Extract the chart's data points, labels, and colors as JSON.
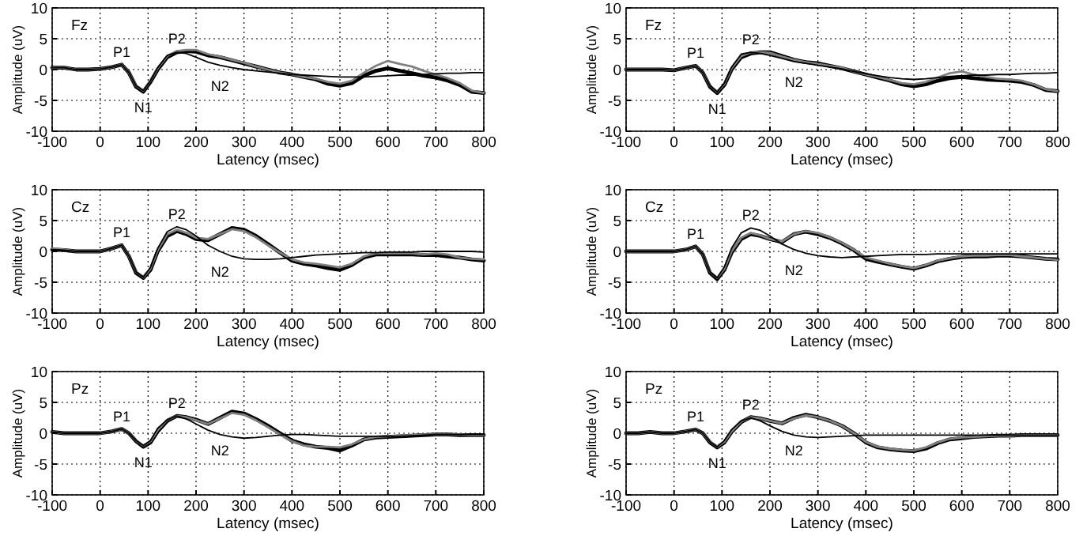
{
  "chart_data": [
    {
      "type": "line",
      "title": "Fz",
      "xlabel": "Latency (msec)",
      "ylabel": "Amplitude (uV)",
      "xlim": [
        -100,
        800
      ],
      "xticks": [
        -100,
        0,
        100,
        200,
        300,
        400,
        500,
        600,
        700,
        800
      ],
      "ylim": [
        -10,
        10
      ],
      "yticks": [
        -10,
        -5,
        0,
        5,
        10
      ],
      "grid": true,
      "x": [
        -100,
        -75,
        -50,
        -25,
        0,
        25,
        45,
        60,
        75,
        90,
        105,
        120,
        140,
        160,
        180,
        200,
        225,
        250,
        275,
        300,
        325,
        350,
        375,
        400,
        425,
        450,
        475,
        500,
        525,
        550,
        575,
        600,
        625,
        650,
        675,
        700,
        725,
        750,
        775,
        800
      ],
      "annotations": [
        {
          "text": "P1",
          "x": 45,
          "y": 0.8
        },
        {
          "text": "N1",
          "x": 90,
          "y": -3.6
        },
        {
          "text": "P2",
          "x": 160,
          "y": 3
        },
        {
          "text": "N2",
          "x": 250,
          "y": 0.7
        }
      ],
      "series": [
        {
          "color": "#000000",
          "values": [
            0.3,
            0.3,
            0,
            0,
            0.1,
            0.4,
            0.8,
            -0.5,
            -2.8,
            -3.6,
            -2,
            0,
            2,
            2.8,
            3,
            2.9,
            2.3,
            2,
            1.5,
            1.0,
            0.5,
            0,
            -0.5,
            -0.8,
            -1.2,
            -1.6,
            -2.3,
            -2.6,
            -2.2,
            -1,
            -0.2,
            0.2,
            -0.2,
            -0.6,
            -1,
            -1.3,
            -1.8,
            -2.5,
            -3.6,
            -3.8
          ]
        },
        {
          "color": "#808080",
          "values": [
            0.3,
            0.3,
            0,
            0,
            0.1,
            0.4,
            0.8,
            -0.5,
            -2.6,
            -3.4,
            -1.8,
            0.2,
            2.2,
            3,
            3.2,
            3.2,
            2.5,
            2.1,
            1.6,
            1.1,
            0.5,
            0,
            -0.5,
            -0.8,
            -1.2,
            -1.5,
            -2,
            -2.3,
            -1.8,
            -0.5,
            0.6,
            1.4,
            0.9,
            0.5,
            -0.2,
            -0.8,
            -1.4,
            -2.2,
            -3.4,
            -3.8
          ]
        },
        {
          "color": "#000000",
          "values": [
            0.3,
            0.3,
            0,
            0,
            0.1,
            0.4,
            0.8,
            -0.5,
            -2.6,
            -3.4,
            -1.8,
            0.3,
            2.3,
            2.8,
            2.6,
            2,
            1.2,
            0.7,
            0.3,
            0,
            -0.2,
            -0.4,
            -0.6,
            -0.8,
            -0.9,
            -1,
            -1.1,
            -1.2,
            -1.2,
            -1.2,
            -1.1,
            -1,
            -0.9,
            -0.9,
            -0.8,
            -0.7,
            -0.6,
            -0.6,
            -0.5,
            -0.5
          ]
        }
      ]
    },
    {
      "type": "line",
      "title": "Fz",
      "xlabel": "Latency (msec)",
      "ylabel": "Amplitude (uV)",
      "xlim": [
        -100,
        800
      ],
      "xticks": [
        -100,
        0,
        100,
        200,
        300,
        400,
        500,
        600,
        700,
        800
      ],
      "ylim": [
        -10,
        10
      ],
      "yticks": [
        -10,
        -5,
        0,
        5,
        10
      ],
      "grid": true,
      "x": [
        -100,
        -75,
        -50,
        -25,
        0,
        25,
        45,
        60,
        75,
        90,
        105,
        120,
        140,
        160,
        180,
        200,
        225,
        250,
        275,
        300,
        325,
        350,
        375,
        400,
        425,
        450,
        475,
        500,
        525,
        550,
        575,
        600,
        625,
        650,
        675,
        700,
        725,
        750,
        775,
        800
      ],
      "annotations": [
        {
          "text": "P1",
          "x": 45,
          "y": 0.6
        },
        {
          "text": "N1",
          "x": 90,
          "y": -3.8
        },
        {
          "text": "P2",
          "x": 160,
          "y": 2.8
        },
        {
          "text": "N2",
          "x": 250,
          "y": 1.3
        }
      ],
      "series": [
        {
          "color": "#000000",
          "values": [
            0,
            0,
            0,
            0,
            -0.1,
            0.3,
            0.6,
            -0.5,
            -2.8,
            -3.8,
            -2.5,
            0,
            2,
            2.6,
            2.8,
            2.8,
            2.2,
            1.6,
            1.2,
            1,
            0.6,
            0.2,
            -0.3,
            -0.8,
            -1.3,
            -1.8,
            -2.4,
            -2.7,
            -2.4,
            -1.8,
            -1.4,
            -1.2,
            -1.4,
            -1.6,
            -1.7,
            -1.8,
            -2,
            -2.5,
            -3.3,
            -3.5
          ]
        },
        {
          "color": "#808080",
          "values": [
            0,
            0,
            0,
            0,
            -0.1,
            0.3,
            0.6,
            -0.5,
            -2.6,
            -3.6,
            -2.3,
            0.2,
            2.2,
            2.8,
            2.8,
            2.7,
            2.1,
            1.6,
            1.2,
            0.9,
            0.6,
            0.3,
            -0.3,
            -0.8,
            -1.2,
            -1.7,
            -2.2,
            -2.4,
            -2,
            -1.3,
            -0.6,
            -0.3,
            -0.8,
            -1.2,
            -1.5,
            -1.6,
            -1.8,
            -2.4,
            -3.2,
            -3.5
          ]
        },
        {
          "color": "#000000",
          "values": [
            0,
            0,
            0,
            0,
            -0.1,
            0.3,
            0.6,
            -0.5,
            -2.6,
            -3.6,
            -2.2,
            0.4,
            2.5,
            2.8,
            2.6,
            2.3,
            1.8,
            1.3,
            1,
            0.7,
            0.4,
            0.1,
            -0.3,
            -0.7,
            -1,
            -1.3,
            -1.5,
            -1.6,
            -1.5,
            -1.3,
            -1.1,
            -1,
            -0.9,
            -0.9,
            -0.8,
            -0.8,
            -0.7,
            -0.6,
            -0.6,
            -0.5
          ]
        }
      ]
    },
    {
      "type": "line",
      "title": "Cz",
      "xlabel": "Latency (msec)",
      "ylabel": "Amplitude (uV)",
      "xlim": [
        -100,
        800
      ],
      "xticks": [
        -100,
        0,
        100,
        200,
        300,
        400,
        500,
        600,
        700,
        800
      ],
      "ylim": [
        -10,
        10
      ],
      "yticks": [
        -10,
        -5,
        0,
        5,
        10
      ],
      "grid": true,
      "x": [
        -100,
        -75,
        -50,
        -25,
        0,
        25,
        45,
        60,
        75,
        90,
        105,
        120,
        140,
        160,
        180,
        200,
        225,
        250,
        275,
        300,
        325,
        350,
        375,
        400,
        425,
        450,
        475,
        500,
        525,
        550,
        575,
        600,
        625,
        650,
        675,
        700,
        725,
        750,
        775,
        800
      ],
      "annotations": [
        {
          "text": "P1",
          "x": 45,
          "y": 1
        },
        {
          "text": "P2",
          "x": 160,
          "y": 4
        },
        {
          "text": "N2",
          "x": 250,
          "y": 0
        }
      ],
      "series": [
        {
          "color": "#000000",
          "values": [
            0.3,
            0.2,
            0,
            0,
            0,
            0.5,
            1,
            -0.8,
            -3.5,
            -4.3,
            -3,
            0,
            2.5,
            3.3,
            2.8,
            2,
            1.8,
            2.8,
            3.8,
            3.5,
            2.5,
            1.2,
            -0.2,
            -1.5,
            -2,
            -2.3,
            -2.7,
            -3,
            -2.2,
            -1,
            -0.5,
            -0.5,
            -0.5,
            -0.5,
            -0.6,
            -0.6,
            -0.8,
            -1,
            -1.3,
            -1.5
          ]
        },
        {
          "color": "#808080",
          "values": [
            0.5,
            0.3,
            0,
            0,
            0,
            0.5,
            1,
            -0.8,
            -3.3,
            -4.2,
            -2.8,
            0.2,
            2.8,
            3.5,
            3,
            2.2,
            2,
            2.8,
            3.6,
            3.3,
            2.3,
            1,
            -0.2,
            -1.3,
            -1.8,
            -2,
            -2.3,
            -2.6,
            -2,
            -0.8,
            -0.3,
            -0.3,
            -0.3,
            -0.3,
            -0.5,
            -0.3,
            -0.5,
            -1,
            -1.2,
            -1.3
          ]
        },
        {
          "color": "#000000",
          "values": [
            0.3,
            0.2,
            0,
            0,
            0,
            0.5,
            1,
            -0.8,
            -3.3,
            -4.2,
            -2.6,
            0.5,
            3.2,
            4,
            3.5,
            2.5,
            1,
            0,
            -0.8,
            -1.2,
            -1.3,
            -1.3,
            -1.2,
            -1,
            -0.8,
            -0.6,
            -0.5,
            -0.4,
            -0.3,
            -0.2,
            -0.2,
            -0.1,
            -0.1,
            -0.1,
            0,
            0,
            0,
            0,
            0,
            -0.1
          ]
        }
      ]
    },
    {
      "type": "line",
      "title": "Cz",
      "xlabel": "Latency (msec)",
      "ylabel": "Amplitude (uV)",
      "xlim": [
        -100,
        800
      ],
      "xticks": [
        -100,
        0,
        100,
        200,
        300,
        400,
        500,
        600,
        700,
        800
      ],
      "ylim": [
        -10,
        10
      ],
      "yticks": [
        -10,
        -5,
        0,
        5,
        10
      ],
      "grid": true,
      "x": [
        -100,
        -75,
        -50,
        -25,
        0,
        25,
        45,
        60,
        75,
        90,
        105,
        120,
        140,
        160,
        180,
        200,
        225,
        250,
        275,
        300,
        325,
        350,
        375,
        400,
        425,
        450,
        475,
        500,
        525,
        550,
        575,
        600,
        625,
        650,
        675,
        700,
        725,
        750,
        775,
        800
      ],
      "annotations": [
        {
          "text": "P1",
          "x": 45,
          "y": 0.8
        },
        {
          "text": "P2",
          "x": 160,
          "y": 3.8
        },
        {
          "text": "N2",
          "x": 250,
          "y": 0.3
        }
      ],
      "series": [
        {
          "color": "#000000",
          "values": [
            0,
            0,
            0,
            0,
            0,
            0.3,
            0.8,
            -0.5,
            -3.5,
            -4.5,
            -3,
            -0.2,
            2,
            2.8,
            2.5,
            2,
            1.5,
            2.8,
            3.2,
            2.8,
            2.2,
            1.3,
            0.2,
            -1.2,
            -1.7,
            -2.1,
            -2.5,
            -2.8,
            -2.3,
            -1.6,
            -1.2,
            -0.9,
            -0.8,
            -0.8,
            -0.7,
            -0.7,
            -0.8,
            -1,
            -1.2,
            -1.3
          ]
        },
        {
          "color": "#808080",
          "values": [
            0,
            0,
            0,
            0,
            0,
            0.3,
            0.8,
            -0.5,
            -3.3,
            -4.3,
            -2.8,
            0,
            2.2,
            3,
            2.6,
            2,
            1.6,
            2.8,
            3.3,
            3,
            2.3,
            1.4,
            0.3,
            -1,
            -1.5,
            -2,
            -2.4,
            -2.7,
            -2.2,
            -1.5,
            -1.1,
            -0.8,
            -0.7,
            -0.7,
            -0.6,
            -0.6,
            -0.8,
            -1,
            -1.2,
            -1.4
          ]
        },
        {
          "color": "#000000",
          "values": [
            0,
            0,
            0,
            0,
            0,
            0.3,
            0.8,
            -0.5,
            -3.3,
            -4.3,
            -2.5,
            0.5,
            3,
            3.8,
            3.4,
            2.5,
            1.2,
            0.3,
            -0.3,
            -0.7,
            -0.9,
            -1,
            -0.9,
            -0.8,
            -0.7,
            -0.6,
            -0.5,
            -0.5,
            -0.5,
            -0.4,
            -0.4,
            -0.4,
            -0.4,
            -0.4,
            -0.4,
            -0.4,
            -0.4,
            -0.4,
            -0.4,
            -0.4
          ]
        }
      ]
    },
    {
      "type": "line",
      "title": "Pz",
      "xlabel": "Latency (msec)",
      "ylabel": "Amplitude (uV)",
      "xlim": [
        -100,
        800
      ],
      "xticks": [
        -100,
        0,
        100,
        200,
        300,
        400,
        500,
        600,
        700,
        800
      ],
      "ylim": [
        -10,
        10
      ],
      "yticks": [
        -10,
        -5,
        0,
        5,
        10
      ],
      "grid": true,
      "x": [
        -100,
        -75,
        -50,
        -25,
        0,
        25,
        45,
        60,
        75,
        90,
        105,
        120,
        140,
        160,
        180,
        200,
        225,
        250,
        275,
        300,
        325,
        350,
        375,
        400,
        425,
        450,
        475,
        500,
        525,
        550,
        575,
        600,
        625,
        650,
        675,
        700,
        725,
        750,
        775,
        800
      ],
      "annotations": [
        {
          "text": "P1",
          "x": 45,
          "y": 0.7
        },
        {
          "text": "N1",
          "x": 90,
          "y": -2.2
        },
        {
          "text": "P2",
          "x": 160,
          "y": 2.8
        },
        {
          "text": "N2",
          "x": 250,
          "y": -0.2
        }
      ],
      "series": [
        {
          "color": "#000000",
          "values": [
            0.2,
            0,
            0,
            0,
            0,
            0.3,
            0.7,
            0,
            -1.3,
            -2.2,
            -1.5,
            0.3,
            2,
            2.8,
            2.6,
            2.2,
            1.5,
            2.5,
            3.5,
            3.2,
            2.3,
            1.2,
            0,
            -1.2,
            -1.8,
            -2.2,
            -2.4,
            -2.8,
            -2,
            -1,
            -0.7,
            -0.6,
            -0.5,
            -0.4,
            -0.3,
            -0.2,
            -0.2,
            -0.3,
            -0.3,
            -0.3
          ]
        },
        {
          "color": "#808080",
          "values": [
            0.2,
            0,
            0,
            0,
            0,
            0.3,
            0.7,
            0,
            -1.2,
            -2,
            -1.3,
            0.5,
            2.2,
            2.8,
            2.6,
            2.1,
            1.5,
            2.4,
            3.3,
            3,
            2.1,
            1,
            -0.2,
            -1.3,
            -2,
            -2.2,
            -2.2,
            -2.3,
            -1.8,
            -1,
            -0.6,
            -0.5,
            -0.4,
            -0.3,
            -0.2,
            -0.2,
            -0.2,
            -0.2,
            -0.3,
            -0.3
          ]
        },
        {
          "color": "#000000",
          "values": [
            0.2,
            0,
            0,
            0,
            0,
            0.3,
            0.7,
            0,
            -1.2,
            -2,
            -1.2,
            0.8,
            2.2,
            2.8,
            2.3,
            1.5,
            0.5,
            -0.2,
            -0.6,
            -0.8,
            -0.7,
            -0.5,
            -0.3,
            -0.2,
            -0.2,
            -0.3,
            -0.4,
            -0.5,
            -0.5,
            -0.5,
            -0.5,
            -0.5,
            -0.5,
            -0.4,
            -0.3,
            -0.2,
            -0.2,
            -0.2,
            -0.2,
            -0.2
          ]
        }
      ]
    },
    {
      "type": "line",
      "title": "Pz",
      "xlabel": "Latency (msec)",
      "ylabel": "Amplitude (uV)",
      "xlim": [
        -100,
        800
      ],
      "xticks": [
        -100,
        0,
        100,
        200,
        300,
        400,
        500,
        600,
        700,
        800
      ],
      "ylim": [
        -10,
        10
      ],
      "yticks": [
        -10,
        -5,
        0,
        5,
        10
      ],
      "grid": true,
      "x": [
        -100,
        -75,
        -50,
        -25,
        0,
        25,
        45,
        60,
        75,
        90,
        105,
        120,
        140,
        160,
        180,
        200,
        225,
        250,
        275,
        300,
        325,
        350,
        375,
        400,
        425,
        450,
        475,
        500,
        525,
        550,
        575,
        600,
        625,
        650,
        675,
        700,
        725,
        750,
        775,
        800
      ],
      "annotations": [
        {
          "text": "P1",
          "x": 45,
          "y": 0.6
        },
        {
          "text": "N1",
          "x": 90,
          "y": -2.3
        },
        {
          "text": "P2",
          "x": 160,
          "y": 2.6
        },
        {
          "text": "N2",
          "x": 250,
          "y": -0.3
        }
      ],
      "series": [
        {
          "color": "#000000",
          "values": [
            0,
            0,
            0.2,
            0,
            0,
            0.3,
            0.6,
            0,
            -1.5,
            -2.3,
            -1.5,
            0.2,
            1.8,
            2.6,
            2.4,
            2,
            1.6,
            2.5,
            3,
            2.6,
            2,
            1.2,
            0,
            -1.5,
            -2.3,
            -2.6,
            -2.8,
            -2.9,
            -2.5,
            -1.6,
            -1,
            -0.8,
            -0.6,
            -0.5,
            -0.4,
            -0.4,
            -0.3,
            -0.3,
            -0.3,
            -0.3
          ]
        },
        {
          "color": "#808080",
          "values": [
            0,
            0,
            0.2,
            0,
            0,
            0.3,
            0.6,
            0,
            -1.4,
            -2.2,
            -1.4,
            0.3,
            1.9,
            2.6,
            2.4,
            2,
            1.6,
            2.4,
            2.9,
            2.6,
            2,
            1.2,
            0,
            -1.4,
            -2.2,
            -2.5,
            -2.7,
            -2.8,
            -2.3,
            -1.5,
            -0.9,
            -0.7,
            -0.6,
            -0.5,
            -0.4,
            -0.4,
            -0.3,
            -0.3,
            -0.3,
            -0.3
          ]
        },
        {
          "color": "#000000",
          "values": [
            0,
            0,
            0.2,
            0,
            0,
            0.3,
            0.6,
            0,
            -1.4,
            -2.2,
            -1.2,
            0.6,
            2,
            2.5,
            2,
            1.2,
            0.3,
            -0.3,
            -0.6,
            -0.7,
            -0.6,
            -0.5,
            -0.4,
            -0.3,
            -0.3,
            -0.3,
            -0.3,
            -0.3,
            -0.3,
            -0.3,
            -0.3,
            -0.3,
            -0.3,
            -0.3,
            -0.3,
            -0.3,
            -0.3,
            -0.3,
            -0.3,
            -0.3
          ]
        }
      ]
    }
  ]
}
